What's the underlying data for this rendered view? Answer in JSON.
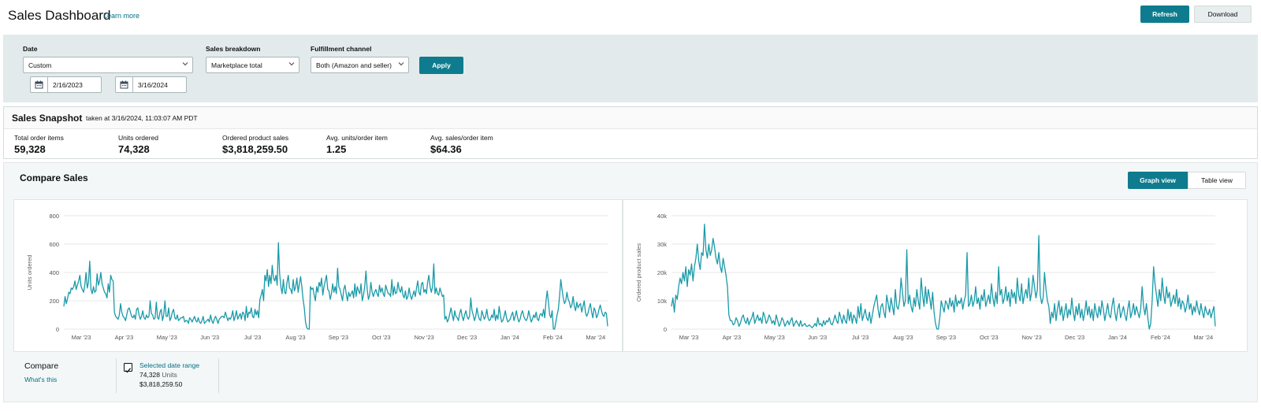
{
  "header": {
    "title": "Sales Dashboard",
    "learn_more": "Learn more",
    "refresh_label": "Refresh",
    "download_label": "Download"
  },
  "filters": {
    "date_label": "Date",
    "date_value": "Custom",
    "start_date": "2/16/2023",
    "end_date": "3/16/2024",
    "breakdown_label": "Sales breakdown",
    "breakdown_value": "Marketplace total",
    "fulfillment_label": "Fulfillment channel",
    "fulfillment_value": "Both (Amazon and seller)",
    "apply_label": "Apply"
  },
  "snapshot": {
    "title": "Sales Snapshot",
    "taken": "taken at 3/16/2024, 11:03:07 AM PDT",
    "metrics": [
      {
        "label": "Total order items",
        "value": "59,328"
      },
      {
        "label": "Units ordered",
        "value": "74,328"
      },
      {
        "label": "Ordered product sales",
        "value": "$3,818,259.50"
      },
      {
        "label": "Avg. units/order item",
        "value": "1.25"
      },
      {
        "label": "Avg. sales/order item",
        "value": "$64.36"
      }
    ]
  },
  "compare": {
    "title": "Compare Sales",
    "graph_view": "Graph view",
    "table_view": "Table view",
    "compare_label": "Compare",
    "whats_this": "What's this",
    "range_label": "Selected date range",
    "units_value": "74,328",
    "units_word": "Units",
    "sales_value": "$3,818,259.50"
  },
  "colors": {
    "accent": "#0e7c8e",
    "line": "#1a9aa8",
    "link": "#007185",
    "filter_bg": "#e3eaec"
  },
  "chart_data": [
    {
      "type": "line",
      "ylabel": "Units ordered",
      "ylim": [
        0,
        800
      ],
      "yticks": [
        "0",
        "200",
        "400",
        "600",
        "800"
      ],
      "xticks": [
        "Mar '23",
        "Apr '23",
        "May '23",
        "Jun '23",
        "Jul '23",
        "Aug '23",
        "Sep '23",
        "Oct '23",
        "Nov '23",
        "Dec '23",
        "Jan '24",
        "Feb '24",
        "Mar '24"
      ],
      "grid": true,
      "series": [
        {
          "values": [
            160,
            230,
            180,
            215,
            260,
            250,
            290,
            280,
            300,
            340,
            280,
            310,
            340,
            380,
            300,
            280,
            260,
            310,
            400,
            290,
            330,
            480,
            280,
            250,
            300,
            260,
            270,
            390,
            310,
            340,
            400,
            320,
            290,
            260,
            250,
            220,
            320,
            260,
            380,
            350,
            340,
            120,
            90,
            80,
            70,
            100,
            180,
            120,
            90,
            80,
            60,
            100,
            140,
            150,
            120,
            90,
            80,
            100,
            70,
            140,
            150,
            100,
            70,
            90,
            130,
            80,
            70,
            100,
            80,
            90,
            200,
            110,
            100,
            70,
            80,
            190,
            80,
            70,
            120,
            140,
            60,
            100,
            200,
            90,
            90,
            150,
            60,
            80,
            120,
            140,
            80,
            70,
            100,
            60,
            70,
            80,
            80,
            90,
            50,
            60,
            60,
            40,
            80,
            70,
            50,
            70,
            90,
            60,
            50,
            80,
            50,
            40,
            60,
            90,
            40,
            50,
            60,
            70,
            50,
            100,
            60,
            40,
            70,
            90,
            70,
            40,
            70,
            80,
            90,
            90,
            80,
            120,
            90,
            60,
            80,
            70,
            90,
            130,
            60,
            90,
            130,
            70,
            90,
            110,
            70,
            120,
            110,
            60,
            160,
            80,
            120,
            110,
            150,
            90,
            80,
            140,
            100,
            130,
            80,
            210,
            240,
            280,
            200,
            380,
            340,
            420,
            300,
            380,
            320,
            450,
            360,
            340,
            380,
            310,
            610,
            390,
            300,
            250,
            350,
            260,
            250,
            330,
            380,
            290,
            280,
            250,
            350,
            270,
            300,
            360,
            260,
            320,
            370,
            300,
            210,
            150,
            50,
            10,
            0,
            0,
            300,
            280,
            290,
            240,
            200,
            300,
            260,
            330,
            300,
            360,
            240,
            300,
            340,
            380,
            280,
            270,
            210,
            250,
            320,
            260,
            300,
            250,
            430,
            300,
            280,
            240,
            200,
            280,
            310,
            250,
            200,
            260,
            230,
            250,
            270,
            220,
            320,
            230,
            300,
            270,
            250,
            320,
            200,
            240,
            300,
            410,
            280,
            210,
            240,
            330,
            260,
            230,
            260,
            280,
            250,
            230,
            310,
            260,
            290,
            250,
            230,
            310,
            280,
            250,
            250,
            230,
            350,
            240,
            300,
            250,
            260,
            330,
            280,
            260,
            300,
            240,
            220,
            270,
            210,
            230,
            290,
            240,
            210,
            240,
            270,
            230,
            290,
            340,
            260,
            240,
            320,
            330,
            260,
            280,
            250,
            330,
            380,
            300,
            260,
            300,
            460,
            250,
            290,
            250,
            240,
            290,
            260,
            230,
            240,
            70,
            90,
            50,
            70,
            110,
            150,
            100,
            60,
            130,
            90,
            80,
            60,
            110,
            140,
            90,
            60,
            100,
            130,
            90,
            70,
            90,
            220,
            130,
            100,
            60,
            90,
            150,
            100,
            70,
            60,
            130,
            100,
            70,
            90,
            140,
            80,
            60,
            70,
            100,
            80,
            140,
            60,
            100,
            70,
            160,
            100,
            50,
            60,
            90,
            130,
            80,
            50,
            60,
            70,
            100,
            120,
            60,
            90,
            130,
            80,
            50,
            70,
            110,
            130,
            90,
            70,
            60,
            80,
            130,
            90,
            50,
            70,
            100,
            80,
            120,
            70,
            60,
            100,
            110,
            90,
            140,
            80,
            200,
            270,
            190,
            100,
            80,
            130,
            0,
            0,
            50,
            100,
            140,
            230,
            350,
            280,
            220,
            180,
            200,
            260,
            210,
            190,
            150,
            170,
            230,
            160,
            130,
            190,
            150,
            170,
            180,
            120,
            160,
            200,
            120,
            90,
            110,
            150,
            180,
            120,
            80,
            150,
            130,
            80,
            100,
            140,
            170,
            130,
            100,
            90,
            120,
            110,
            20
          ]
        }
      ]
    },
    {
      "type": "line",
      "ylabel": "Ordered product sales",
      "ylim": [
        0,
        40000
      ],
      "yticks": [
        "0",
        "10k",
        "20k",
        "30k",
        "40k"
      ],
      "xticks": [
        "Mar '23",
        "Apr '23",
        "May '23",
        "Jun '23",
        "Jul '23",
        "Aug '23",
        "Sep '23",
        "Oct '23",
        "Nov '23",
        "Dec '23",
        "Jan '24",
        "Feb '24",
        "Mar '24"
      ],
      "grid": true,
      "series": [
        {
          "values": [
            8000,
            11000,
            6000,
            12000,
            10500,
            15000,
            18000,
            16000,
            20000,
            17000,
            22000,
            15000,
            21000,
            19000,
            23000,
            17000,
            22000,
            25000,
            30000,
            24000,
            21000,
            27000,
            26000,
            37000,
            28000,
            25000,
            30000,
            26000,
            28000,
            32000,
            29000,
            25000,
            23000,
            27000,
            22000,
            20000,
            25000,
            22000,
            19000,
            15000,
            5000,
            3000,
            3000,
            1500,
            2000,
            4000,
            3000,
            1000,
            2000,
            4000,
            5000,
            3000,
            2000,
            4000,
            1500,
            3000,
            4000,
            6000,
            2000,
            3500,
            5000,
            3000,
            4000,
            2000,
            6000,
            4500,
            2000,
            3000,
            5000,
            4000,
            2000,
            3000,
            1500,
            5000,
            3000,
            1000,
            2000,
            4000,
            3000,
            1000,
            2000,
            3000,
            1500,
            3000,
            4000,
            1000,
            2000,
            3000,
            2000,
            1000,
            3000,
            1000,
            1500,
            2000,
            1000,
            1000,
            1500,
            1000,
            500,
            1000,
            2000,
            1000,
            4000,
            1500,
            2000,
            1000,
            3000,
            1500,
            3000,
            2500,
            4000,
            2000,
            1500,
            3000,
            5000,
            3000,
            2000,
            6000,
            4000,
            2000,
            5000,
            3000,
            2000,
            7000,
            3000,
            6000,
            2000,
            5000,
            4000,
            2000,
            8000,
            4000,
            9000,
            3000,
            5000,
            7000,
            4000,
            3000,
            6000,
            2000,
            5000,
            8000,
            10000,
            12000,
            7000,
            4000,
            8000,
            9000,
            6000,
            4000,
            12000,
            9000,
            6000,
            11000,
            8000,
            5000,
            14000,
            8000,
            7000,
            10000,
            18000,
            13000,
            8000,
            10000,
            28000,
            9000,
            12000,
            8000,
            6000,
            11000,
            8000,
            14000,
            10000,
            7000,
            18000,
            12000,
            8000,
            15000,
            9000,
            14000,
            11000,
            7000,
            13000,
            6000,
            2000,
            0,
            0,
            4000,
            10000,
            8000,
            6000,
            10000,
            9000,
            7000,
            11000,
            8000,
            10000,
            6000,
            12000,
            8000,
            10000,
            9000,
            11000,
            7000,
            10000,
            12000,
            27000,
            8000,
            9000,
            12000,
            8000,
            10000,
            15000,
            9000,
            11000,
            7000,
            12000,
            10000,
            14000,
            8000,
            10000,
            12000,
            9000,
            16000,
            11000,
            8000,
            13000,
            9000,
            22000,
            12000,
            14000,
            9000,
            11000,
            15000,
            10000,
            13000,
            8000,
            14000,
            11000,
            13000,
            9000,
            18000,
            12000,
            10000,
            16000,
            9000,
            12000,
            14000,
            11000,
            18000,
            10000,
            13000,
            19000,
            15000,
            11000,
            14000,
            33000,
            12000,
            9000,
            11000,
            20000,
            14000,
            10000,
            8000,
            2000,
            6000,
            4000,
            9000,
            3000,
            7000,
            10000,
            5000,
            8000,
            3000,
            6000,
            9000,
            4000,
            7000,
            5000,
            11000,
            6000,
            3000,
            8000,
            5000,
            9000,
            4000,
            7000,
            3000,
            6000,
            10000,
            5000,
            8000,
            4000,
            7000,
            3000,
            9000,
            6000,
            4000,
            8000,
            5000,
            10000,
            7000,
            3000,
            6000,
            9000,
            5000,
            4000,
            8000,
            11000,
            6000,
            3000,
            7000,
            9000,
            4000,
            6000,
            8000,
            5000,
            3000,
            7000,
            10000,
            4000,
            6000,
            9000,
            5000,
            8000,
            6000,
            4000,
            7000,
            15000,
            8000,
            5000,
            9000,
            4000,
            0,
            2000,
            10000,
            22000,
            16000,
            12000,
            8000,
            14000,
            10000,
            18000,
            12000,
            9000,
            15000,
            11000,
            13000,
            8000,
            10000,
            12000,
            9000,
            14000,
            8000,
            11000,
            7000,
            10000,
            9000,
            6000,
            8000,
            12000,
            7000,
            9000,
            5000,
            8000,
            6000,
            10000,
            7000,
            5000,
            9000,
            6000,
            4000,
            8000,
            6000,
            5000,
            7000,
            4000,
            6000,
            8000,
            1000
          ]
        }
      ]
    }
  ]
}
